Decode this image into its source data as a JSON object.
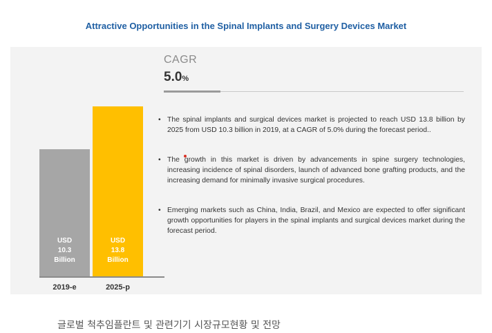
{
  "title": "Attractive Opportunities in the Spinal Implants and Surgery Devices Market",
  "cagr": {
    "label": "CAGR",
    "value": "5.0",
    "unit": "%"
  },
  "chart_data": {
    "type": "bar",
    "categories": [
      "2019-e",
      "2025-p"
    ],
    "values": [
      10.3,
      13.8
    ],
    "bar_labels": [
      [
        "USD",
        "10.3",
        "Billion"
      ],
      [
        "USD",
        "13.8",
        "Billion"
      ]
    ],
    "colors": [
      "#a6a6a6",
      "#ffbf00"
    ],
    "ylim": [
      0,
      15
    ],
    "grid": false,
    "legend": "none"
  },
  "bullets": [
    "The spinal implants and surgical devices market is projected to reach USD 13.8 billion by 2025 from USD 10.3 billion in 2019, at a CAGR of 5.0% during the forecast period..",
    "The growth in this market is driven by advancements in spine surgery technologies, increasing incidence of spinal disorders, launch of advanced bone grafting products, and the increasing demand for minimally invasive surgical procedures.",
    "Emerging markets such as China, India, Brazil, and Mexico are expected to offer significant growth opportunities for players in the spinal implants and surgical devices market during the forecast period."
  ],
  "bullet_symbol": "•",
  "caption": "글로벌 척추임플란트 및 관련기기 시장규모현황 및 전망"
}
